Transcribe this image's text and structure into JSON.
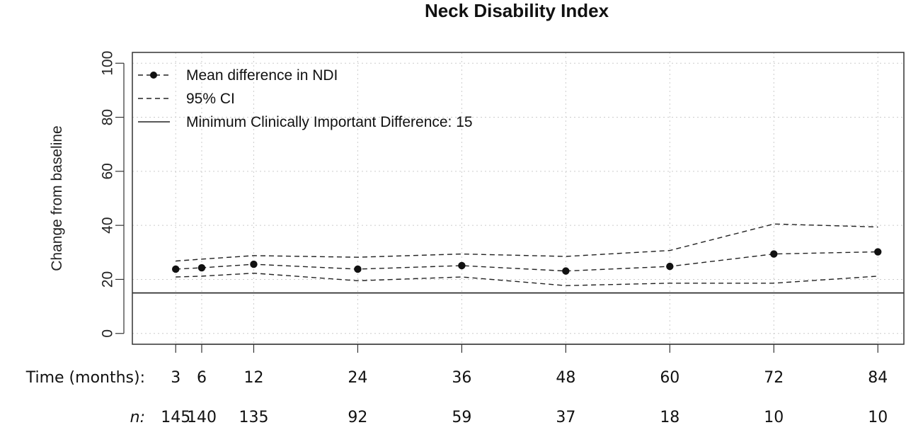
{
  "chart_data": {
    "type": "line",
    "title": "Neck Disability Index",
    "xlabel": "",
    "ylabel": "Change from baseline",
    "ylim": [
      -4,
      104
    ],
    "xlim": [
      -2,
      87
    ],
    "y_ticks": [
      0,
      20,
      40,
      60,
      80,
      100
    ],
    "grid": true,
    "legend_position": "top-left",
    "x": [
      3,
      6,
      12,
      24,
      36,
      48,
      60,
      72,
      84
    ],
    "series": [
      {
        "name": "Mean difference in NDI",
        "style": "dashed-with-points",
        "values": [
          23.8,
          24.3,
          25.6,
          23.8,
          25.1,
          23.1,
          24.8,
          29.4,
          30.2
        ]
      },
      {
        "name": "95% CI",
        "style": "dashed",
        "values": [
          26.8,
          27.5,
          28.8,
          28.2,
          29.4,
          28.5,
          30.7,
          40.5,
          39.4
        ]
      },
      {
        "name": "",
        "style": "dashed",
        "values": [
          20.9,
          21.2,
          22.3,
          19.5,
          20.9,
          17.7,
          18.6,
          18.6,
          21.2
        ]
      }
    ],
    "reference_line": {
      "name": "Minimum Clinically Important Difference: 15",
      "value": 15
    },
    "bottom_rows": [
      {
        "label": "Time (months):",
        "italic": false,
        "values": [
          "3",
          "6",
          "12",
          "24",
          "36",
          "48",
          "60",
          "72",
          "84"
        ]
      },
      {
        "label": "n:",
        "italic": true,
        "values": [
          "145",
          "140",
          "135",
          "92",
          "59",
          "37",
          "18",
          "10",
          "10"
        ]
      }
    ],
    "colors": {
      "line": "#222222",
      "grid": "#cccccc",
      "frame": "#333333"
    }
  }
}
